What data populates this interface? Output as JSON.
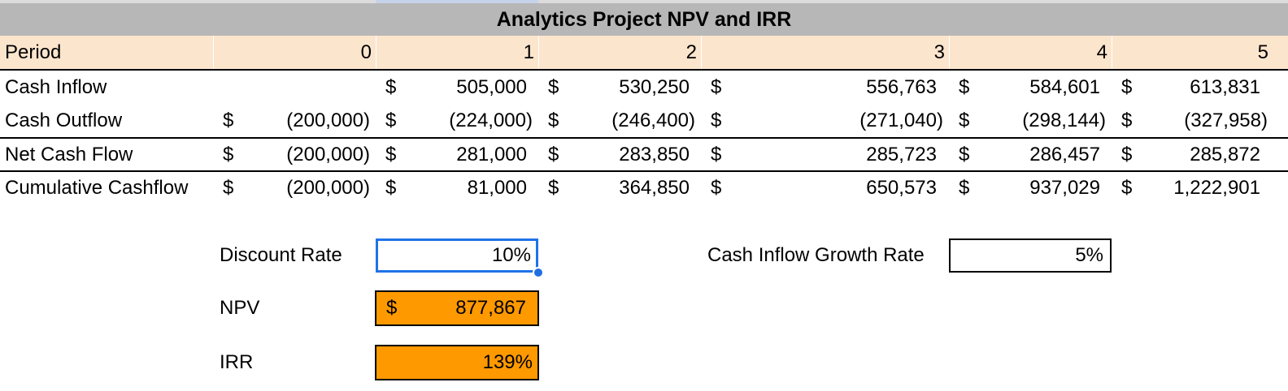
{
  "title": "Analytics Project NPV and IRR",
  "period": {
    "label": "Period",
    "values": [
      "0",
      "1",
      "2",
      "3",
      "4",
      "5"
    ]
  },
  "rows": [
    {
      "label": "Cash Inflow",
      "values": [
        "",
        "505,000",
        "530,250",
        "556,763",
        "584,601",
        "613,831"
      ]
    },
    {
      "label": "Cash Outflow",
      "values": [
        "(200,000)",
        "(224,000)",
        "(246,400)",
        "(271,040)",
        "(298,144)",
        "(327,958)"
      ]
    },
    {
      "label": "Net Cash Flow",
      "values": [
        "(200,000)",
        "281,000",
        "283,850",
        "285,723",
        "286,457",
        "285,872"
      ]
    },
    {
      "label": "Cumulative Cashflow",
      "values": [
        "(200,000)",
        "81,000",
        "364,850",
        "650,573",
        "937,029",
        "1,222,901"
      ]
    }
  ],
  "currency_symbol": "$",
  "inputs": {
    "discount_rate": {
      "label": "Discount Rate",
      "value": "10%"
    },
    "npv": {
      "label": "NPV",
      "value": "877,867"
    },
    "irr": {
      "label": "IRR",
      "value": "139%"
    },
    "growth_rate": {
      "label": "Cash Inflow Growth Rate",
      "value": "5%"
    }
  },
  "colors": {
    "title_bg": "#b7b7b7",
    "period_bg": "#fce5cd",
    "result_bg": "#ff9900",
    "selection": "#1f73e8"
  }
}
